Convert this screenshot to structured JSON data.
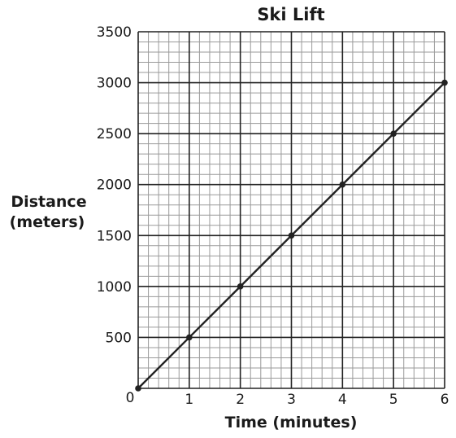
{
  "chart_data": {
    "type": "line",
    "title": "Ski Lift",
    "xlabel": "Time (minutes)",
    "ylabel_lines": [
      "Distance",
      "(meters)"
    ],
    "x": [
      0,
      1,
      2,
      3,
      4,
      5,
      6
    ],
    "series": [
      {
        "values": [
          0,
          500,
          1000,
          1500,
          2000,
          2500,
          3000
        ]
      }
    ],
    "xlim": [
      0,
      6
    ],
    "ylim": [
      0,
      3500
    ],
    "x_major_step": 1,
    "y_major_step": 500,
    "x_minor_per_major": 5,
    "y_minor_per_major": 5,
    "x_ticks": [
      "1",
      "2",
      "3",
      "4",
      "5",
      "6"
    ],
    "y_ticks": [
      "500",
      "1000",
      "1500",
      "2000",
      "2500",
      "3000",
      "3500"
    ],
    "origin_label": "0",
    "grid": true,
    "colors": {
      "line": "#222222",
      "major_grid": "#222222",
      "minor_grid": "#9a9a9a",
      "text": "#1a1a1a"
    }
  }
}
